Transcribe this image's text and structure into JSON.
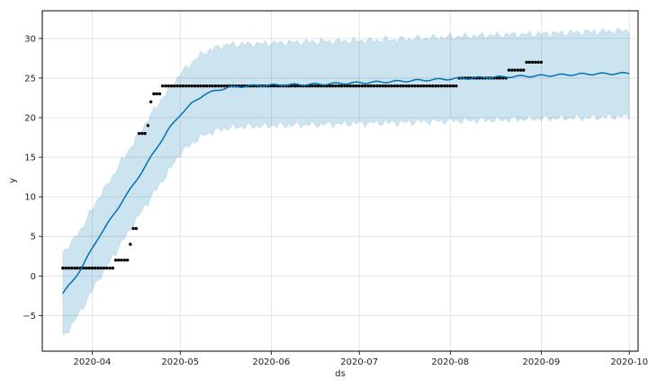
{
  "chart_data": {
    "type": "line",
    "title": "",
    "xlabel": "ds",
    "ylabel": "y",
    "ylim": [
      -9.5,
      33.5
    ],
    "xlim": [
      "2020-03-15",
      "2020-10-04"
    ],
    "grid": true,
    "colors": {
      "forecast": "#0072b2",
      "band": "#0072b2",
      "observed": "#000000",
      "grid": "#dddddd"
    },
    "x_ticks": [
      {
        "date": "2020-04-01",
        "label": "2020-04"
      },
      {
        "date": "2020-05-01",
        "label": "2020-05"
      },
      {
        "date": "2020-06-01",
        "label": "2020-06"
      },
      {
        "date": "2020-07-01",
        "label": "2020-07"
      },
      {
        "date": "2020-08-01",
        "label": "2020-08"
      },
      {
        "date": "2020-09-01",
        "label": "2020-09"
      },
      {
        "date": "2020-10-01",
        "label": "2020-10"
      }
    ],
    "y_ticks": [
      {
        "value": -5,
        "label": "−5"
      },
      {
        "value": 0,
        "label": "0"
      },
      {
        "value": 5,
        "label": "5"
      },
      {
        "value": 10,
        "label": "10"
      },
      {
        "value": 15,
        "label": "15"
      },
      {
        "value": 20,
        "label": "20"
      },
      {
        "value": 25,
        "label": "25"
      },
      {
        "value": 30,
        "label": "30"
      }
    ],
    "forecast": [
      [
        "2020-03-22",
        -2.2
      ],
      [
        "2020-03-25",
        -0.8
      ],
      [
        "2020-03-28",
        0.8
      ],
      [
        "2020-03-31",
        2.8
      ],
      [
        "2020-04-03",
        4.8
      ],
      [
        "2020-04-07",
        7.0
      ],
      [
        "2020-04-11",
        9.3
      ],
      [
        "2020-04-15",
        11.5
      ],
      [
        "2020-04-19",
        13.8
      ],
      [
        "2020-04-23",
        16.2
      ],
      [
        "2020-04-27",
        18.5
      ],
      [
        "2020-05-01",
        20.4
      ],
      [
        "2020-05-05",
        21.8
      ],
      [
        "2020-05-09",
        22.9
      ],
      [
        "2020-05-13",
        23.4
      ],
      [
        "2020-05-17",
        23.8
      ],
      [
        "2020-05-24",
        24.0
      ],
      [
        "2020-06-01",
        24.1
      ],
      [
        "2020-06-15",
        24.2
      ],
      [
        "2020-07-01",
        24.4
      ],
      [
        "2020-07-15",
        24.6
      ],
      [
        "2020-08-01",
        24.9
      ],
      [
        "2020-08-15",
        25.1
      ],
      [
        "2020-09-01",
        25.3
      ],
      [
        "2020-09-15",
        25.5
      ],
      [
        "2020-10-01",
        25.6
      ]
    ],
    "upper": [
      [
        "2020-03-22",
        3.0
      ],
      [
        "2020-03-25",
        4.2
      ],
      [
        "2020-03-28",
        5.8
      ],
      [
        "2020-03-31",
        7.8
      ],
      [
        "2020-04-03",
        9.8
      ],
      [
        "2020-04-07",
        12.0
      ],
      [
        "2020-04-11",
        14.5
      ],
      [
        "2020-04-15",
        16.8
      ],
      [
        "2020-04-19",
        19.2
      ],
      [
        "2020-04-23",
        21.5
      ],
      [
        "2020-04-27",
        23.5
      ],
      [
        "2020-05-01",
        25.5
      ],
      [
        "2020-05-05",
        27.0
      ],
      [
        "2020-05-09",
        28.2
      ],
      [
        "2020-05-13",
        28.8
      ],
      [
        "2020-05-17",
        29.2
      ],
      [
        "2020-05-24",
        29.3
      ],
      [
        "2020-06-01",
        29.4
      ],
      [
        "2020-06-15",
        29.6
      ],
      [
        "2020-07-01",
        29.7
      ],
      [
        "2020-07-15",
        29.9
      ],
      [
        "2020-08-01",
        30.2
      ],
      [
        "2020-08-15",
        30.4
      ],
      [
        "2020-09-01",
        30.6
      ],
      [
        "2020-09-15",
        30.8
      ],
      [
        "2020-10-01",
        31.0
      ]
    ],
    "lower": [
      [
        "2020-03-22",
        -7.8
      ],
      [
        "2020-03-25",
        -6.2
      ],
      [
        "2020-03-28",
        -4.5
      ],
      [
        "2020-03-31",
        -2.5
      ],
      [
        "2020-04-03",
        -0.5
      ],
      [
        "2020-04-07",
        1.8
      ],
      [
        "2020-04-11",
        4.2
      ],
      [
        "2020-04-15",
        6.5
      ],
      [
        "2020-04-19",
        8.8
      ],
      [
        "2020-04-23",
        11.0
      ],
      [
        "2020-04-27",
        13.2
      ],
      [
        "2020-05-01",
        15.5
      ],
      [
        "2020-05-05",
        16.8
      ],
      [
        "2020-05-09",
        17.8
      ],
      [
        "2020-05-13",
        18.3
      ],
      [
        "2020-05-17",
        18.7
      ],
      [
        "2020-05-24",
        18.9
      ],
      [
        "2020-06-01",
        19.0
      ],
      [
        "2020-06-15",
        19.1
      ],
      [
        "2020-07-01",
        19.3
      ],
      [
        "2020-07-15",
        19.4
      ],
      [
        "2020-08-01",
        19.6
      ],
      [
        "2020-08-15",
        19.7
      ],
      [
        "2020-09-01",
        19.9
      ],
      [
        "2020-09-15",
        20.0
      ],
      [
        "2020-10-01",
        20.2
      ]
    ],
    "observed": [
      {
        "start": "2020-03-22",
        "end": "2020-04-08",
        "y": 1
      },
      {
        "start": "2020-04-09",
        "end": "2020-04-13",
        "y": 2
      },
      {
        "start": "2020-04-14",
        "end": "2020-04-14",
        "y": 4
      },
      {
        "start": "2020-04-15",
        "end": "2020-04-16",
        "y": 6
      },
      {
        "start": "2020-04-17",
        "end": "2020-04-19",
        "y": 18
      },
      {
        "start": "2020-04-20",
        "end": "2020-04-20",
        "y": 19
      },
      {
        "start": "2020-04-21",
        "end": "2020-04-21",
        "y": 22
      },
      {
        "start": "2020-04-22",
        "end": "2020-04-24",
        "y": 23
      },
      {
        "start": "2020-04-25",
        "end": "2020-08-03",
        "y": 24
      },
      {
        "start": "2020-08-04",
        "end": "2020-08-20",
        "y": 25
      },
      {
        "start": "2020-08-21",
        "end": "2020-08-26",
        "y": 26
      },
      {
        "start": "2020-08-27",
        "end": "2020-09-01",
        "y": 27
      }
    ]
  }
}
